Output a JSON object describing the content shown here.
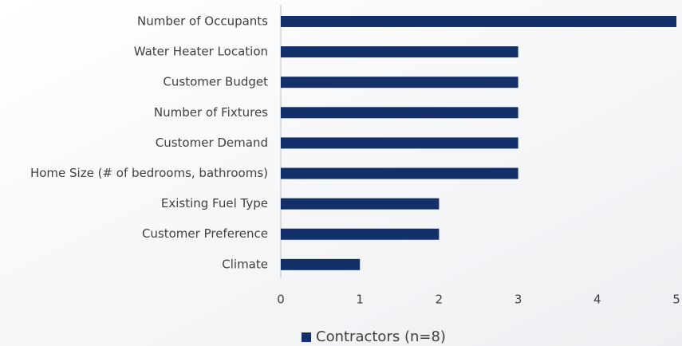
{
  "chart_data": {
    "type": "bar",
    "orientation": "horizontal",
    "categories": [
      "Number of Occupants",
      "Water Heater Location",
      "Customer Budget",
      "Number of Fixtures",
      "Customer Demand",
      "Home Size (# of bedrooms, bathrooms)",
      "Existing Fuel Type",
      "Customer Preference",
      "Climate"
    ],
    "series": [
      {
        "name": "Contractors (n=8)",
        "color": "#13306b",
        "values": [
          5,
          3,
          3,
          3,
          3,
          3,
          2,
          2,
          1
        ]
      }
    ],
    "xlim": [
      0,
      5
    ],
    "xticks": [
      0,
      1,
      2,
      3,
      4,
      5
    ],
    "grid": false,
    "legend": "bottom"
  }
}
